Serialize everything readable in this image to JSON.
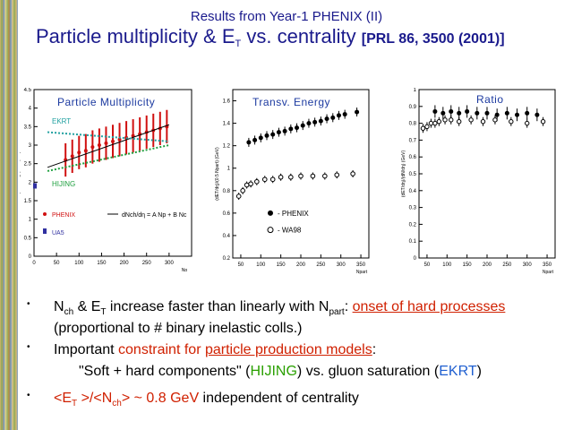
{
  "header": {
    "title_line1": "Results from Year-1 PHENIX (II)",
    "title_line2_main": "Particle multiplicity & E",
    "title_line2_sub": "T",
    "title_line2_rest": " vs. centrality ",
    "title_reference": "[PRL 86, 3500 (2001)]"
  },
  "panels": {
    "multiplicity_label": "Particle Multiplicity",
    "energy_label": "Transv. Energy",
    "ratio_label": "Ratio"
  },
  "chart_data": [
    {
      "type": "scatter",
      "title": "Particle Multiplicity",
      "ylabel": "(dNch/dη)/(0.5 Npart)",
      "xlabel": "Np",
      "xlim": [
        0,
        350
      ],
      "ylim": [
        0,
        4.5
      ],
      "x_ticks": [
        "0",
        "50",
        "100",
        "150",
        "200",
        "250",
        "300"
      ],
      "y_ticks": [
        "0",
        "0.5",
        "1",
        "1.5",
        "2",
        "2.5",
        "3",
        "3.5",
        "4",
        "4.5"
      ],
      "series": [
        {
          "name": "PHENIX",
          "color": "#d01010",
          "x": [
            70,
            85,
            100,
            115,
            130,
            145,
            160,
            175,
            190,
            205,
            220,
            235,
            250,
            265,
            280,
            295
          ],
          "y": [
            2.6,
            2.7,
            2.8,
            2.85,
            2.95,
            3.0,
            3.05,
            3.1,
            3.15,
            3.2,
            3.25,
            3.3,
            3.35,
            3.4,
            3.45,
            3.5
          ]
        },
        {
          "name": "UA5",
          "color": "#3030a0",
          "x": [
            2
          ],
          "y": [
            1.9
          ]
        },
        {
          "name": "EKRT",
          "color": "#20a0a0",
          "x": [
            30,
            300
          ],
          "y": [
            3.35,
            3.1
          ]
        },
        {
          "name": "HIJING",
          "color": "#20a040",
          "x": [
            30,
            300
          ],
          "y": [
            2.3,
            3.0
          ]
        }
      ],
      "annotations": [
        "EKRT",
        "HIJING",
        "PHENIX",
        "UA5",
        "dNch/dη = A Np + B Nc"
      ]
    },
    {
      "type": "scatter",
      "title": "Transv. Energy",
      "ylabel": "(dET/dη)/(0.5 Npart) (GeV)",
      "xlabel": "Npart",
      "xlim": [
        30,
        370
      ],
      "ylim": [
        0.2,
        1.7
      ],
      "x_ticks": [
        "50",
        "100",
        "150",
        "200",
        "250",
        "300",
        "350"
      ],
      "y_ticks": [
        "0.2",
        "0.4",
        "0.6",
        "0.8",
        "1",
        "1.2",
        "1.4",
        "1.6"
      ],
      "series": [
        {
          "name": "PHENIX",
          "x": [
            70,
            85,
            100,
            115,
            130,
            145,
            160,
            175,
            190,
            205,
            220,
            235,
            250,
            265,
            280,
            295,
            310,
            340
          ],
          "y": [
            1.23,
            1.25,
            1.27,
            1.29,
            1.3,
            1.32,
            1.33,
            1.35,
            1.36,
            1.38,
            1.4,
            1.41,
            1.42,
            1.44,
            1.45,
            1.47,
            1.48,
            1.5
          ]
        },
        {
          "name": "WA98",
          "x": [
            45,
            55,
            65,
            75,
            90,
            110,
            130,
            150,
            175,
            200,
            230,
            260,
            290,
            330
          ],
          "y": [
            0.75,
            0.8,
            0.85,
            0.86,
            0.88,
            0.9,
            0.9,
            0.92,
            0.92,
            0.93,
            0.93,
            0.93,
            0.94,
            0.95
          ]
        }
      ]
    },
    {
      "type": "scatter",
      "title": "Ratio",
      "ylabel": "(dET/dη)/(dN/dη) (GeV)",
      "xlabel": "Npart",
      "xlim": [
        30,
        370
      ],
      "ylim": [
        0,
        1
      ],
      "x_ticks": [
        "50",
        "100",
        "150",
        "200",
        "250",
        "300",
        "350"
      ],
      "y_ticks": [
        "0",
        "0.1",
        "0.2",
        "0.3",
        "0.4",
        "0.5",
        "0.6",
        "0.7",
        "0.8",
        "0.9",
        "1"
      ],
      "series": [
        {
          "name": "PHENIX",
          "x": [
            70,
            90,
            110,
            130,
            150,
            175,
            200,
            225,
            250,
            275,
            300,
            325
          ],
          "y": [
            0.87,
            0.86,
            0.87,
            0.86,
            0.87,
            0.86,
            0.86,
            0.85,
            0.86,
            0.85,
            0.86,
            0.85
          ]
        },
        {
          "name": "WA98",
          "x": [
            40,
            50,
            60,
            70,
            80,
            95,
            110,
            130,
            160,
            190,
            220,
            260,
            300,
            340
          ],
          "y": [
            0.77,
            0.78,
            0.8,
            0.8,
            0.81,
            0.82,
            0.82,
            0.81,
            0.82,
            0.81,
            0.82,
            0.81,
            0.8,
            0.81
          ]
        }
      ]
    }
  ],
  "bullets": {
    "b1_a": "N",
    "b1_a_sub": "ch",
    "b1_b": " & E",
    "b1_b_sub": "T",
    "b1_c": " increase faster than linearly with N",
    "b1_c_sub": "part",
    "b1_d": ": ",
    "b1_red": "onset of hard processes",
    "b1_line2": "(proportional to  # binary inelastic colls.)",
    "b2_a": "Important ",
    "b2_red1": "constraint for ",
    "b2_red2": "particle production models",
    "b2_b": ":",
    "b2_line2_a": "\"Soft + hard components\" (",
    "b2_green": "HIJING",
    "b2_line2_b": ") vs. gluon saturation (",
    "b2_blue": "EKRT",
    "b2_line2_c": ")",
    "b3_red_a": "<E",
    "b3_red_a_sub": "T",
    "b3_red_b": " >/<N",
    "b3_red_b_sub": "ch",
    "b3_red_c": "> ~ 0.8 GeV",
    "b3_rest": " independent of centrality",
    "marker": "•"
  }
}
